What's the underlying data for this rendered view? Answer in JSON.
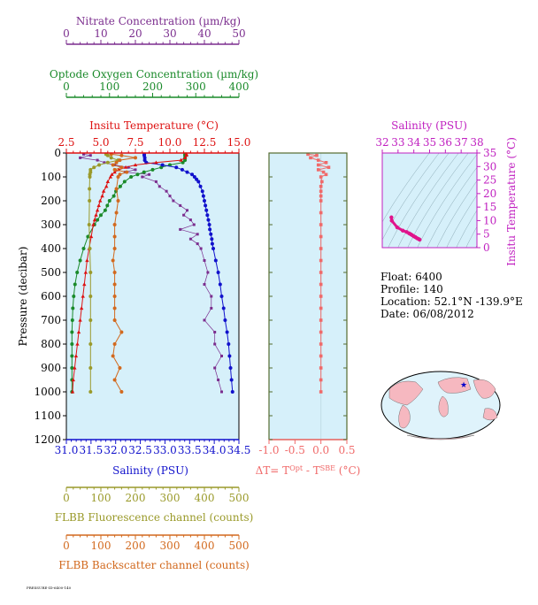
{
  "colors": {
    "nitrate": "#7b2d8e",
    "oxygen": "#1a8a2a",
    "temperature": "#dd1111",
    "salinity": "#1111cc",
    "fluorescence": "#9a9a2a",
    "backscatter": "#d2691e",
    "delta_t": "#f06a6a",
    "ts_curve": "#e0148c",
    "plot_bg": "#d6f0fa",
    "axis_dark": "#556b2f"
  },
  "info": {
    "float": "Float:  6400",
    "profile": "Profile:  140",
    "location": "Location:  52.1°N  -139.9°E",
    "date": "Date:  06/08/2012"
  },
  "footer_text": "PRESSURE-ID-6400-140",
  "chart_data": [
    {
      "type": "line",
      "id": "main_profile",
      "ylabel": "Pressure (decibar)",
      "ylim": [
        1200,
        0
      ],
      "yticks": [
        0,
        100,
        200,
        300,
        400,
        500,
        600,
        700,
        800,
        900,
        1000,
        1100,
        1200
      ],
      "axes": {
        "nitrate": {
          "label": "Nitrate Concentration (µm/kg)",
          "range": [
            0,
            50
          ],
          "ticks": [
            0,
            10,
            20,
            30,
            40,
            50
          ]
        },
        "oxygen": {
          "label": "Optode Oxygen Concentration (µm/kg)",
          "range": [
            0,
            400
          ],
          "ticks": [
            0,
            100,
            200,
            300,
            400
          ]
        },
        "temperature": {
          "label": "Insitu Temperature (°C)",
          "range": [
            2.5,
            15.0
          ],
          "ticks": [
            "2.5",
            "5.0",
            "7.5",
            "10.0",
            "12.5",
            "15.0"
          ]
        },
        "salinity": {
          "label": "Salinity (PSU)",
          "range": [
            31.0,
            34.5
          ],
          "ticks": [
            "31.0",
            "31.5",
            "32.0",
            "32.5",
            "33.0",
            "33.5",
            "34.0",
            "34.5"
          ]
        },
        "fluorescence": {
          "label": "FLBB Fluorescence channel (counts)",
          "range": [
            0,
            500
          ],
          "ticks": [
            0,
            100,
            200,
            300,
            400,
            500
          ]
        },
        "backscatter": {
          "label": "FLBB Backscatter channel (counts)",
          "range": [
            0,
            500
          ],
          "ticks": [
            0,
            100,
            200,
            300,
            400,
            500
          ]
        }
      },
      "series": [
        {
          "key": "salinity",
          "pressure": [
            5,
            10,
            20,
            30,
            40,
            50,
            60,
            70,
            80,
            90,
            100,
            110,
            120,
            140,
            160,
            180,
            200,
            220,
            240,
            260,
            280,
            300,
            320,
            340,
            360,
            380,
            400,
            450,
            500,
            550,
            600,
            650,
            700,
            750,
            800,
            850,
            900,
            950,
            1000
          ],
          "values": [
            32.58,
            32.58,
            32.59,
            32.59,
            32.62,
            32.95,
            33.23,
            33.35,
            33.45,
            33.55,
            33.6,
            33.64,
            33.68,
            33.72,
            33.76,
            33.78,
            33.8,
            33.82,
            33.84,
            33.86,
            33.88,
            33.9,
            33.91,
            33.93,
            33.95,
            33.96,
            33.98,
            34.03,
            34.08,
            34.12,
            34.15,
            34.19,
            34.22,
            34.26,
            34.29,
            34.31,
            34.33,
            34.35,
            34.37
          ]
        },
        {
          "key": "temperature",
          "pressure": [
            5,
            10,
            20,
            30,
            40,
            50,
            60,
            70,
            80,
            90,
            100,
            120,
            140,
            160,
            180,
            200,
            220,
            240,
            260,
            280,
            300,
            350,
            400,
            450,
            500,
            550,
            600,
            650,
            700,
            750,
            800,
            850,
            900,
            950,
            1000
          ],
          "values": [
            11.2,
            11.2,
            11.1,
            10.8,
            9.0,
            7.5,
            6.8,
            6.3,
            6.0,
            5.8,
            5.7,
            5.5,
            5.4,
            5.2,
            5.1,
            4.95,
            4.85,
            4.75,
            4.65,
            4.55,
            4.45,
            4.3,
            4.15,
            4.0,
            3.9,
            3.8,
            3.7,
            3.6,
            3.5,
            3.4,
            3.3,
            3.2,
            3.1,
            3.0,
            2.95
          ]
        },
        {
          "key": "oxygen",
          "pressure": [
            5,
            10,
            20,
            30,
            40,
            50,
            60,
            70,
            80,
            90,
            100,
            120,
            140,
            160,
            180,
            200,
            220,
            240,
            260,
            280,
            300,
            350,
            400,
            450,
            500,
            550,
            600,
            650,
            700,
            750,
            800,
            850,
            900,
            950,
            1000
          ],
          "values": [
            275,
            275,
            275,
            275,
            270,
            240,
            220,
            200,
            180,
            165,
            150,
            135,
            125,
            115,
            110,
            100,
            95,
            90,
            80,
            72,
            65,
            50,
            40,
            32,
            25,
            20,
            17,
            15,
            14,
            13,
            13,
            13,
            13,
            13,
            13
          ]
        },
        {
          "key": "nitrate",
          "pressure": [
            5,
            10,
            20,
            30,
            40,
            50,
            60,
            70,
            80,
            90,
            100,
            120,
            140,
            160,
            180,
            200,
            220,
            240,
            260,
            280,
            300,
            320,
            340,
            360,
            380,
            400,
            450,
            500,
            550,
            600,
            650,
            700,
            750,
            800,
            850,
            900,
            950,
            1000
          ],
          "values": [
            5,
            7,
            4,
            9,
            11,
            14,
            18,
            20,
            17,
            24,
            22,
            26,
            27,
            29,
            30,
            31,
            33,
            35,
            34,
            36,
            37,
            33,
            38,
            36,
            38,
            39,
            40,
            41,
            40,
            42,
            42,
            40,
            43,
            43,
            45,
            43,
            44,
            45
          ]
        },
        {
          "key": "fluorescence",
          "pressure": [
            5,
            10,
            20,
            30,
            40,
            50,
            60,
            70,
            80,
            90,
            100,
            150,
            200,
            300,
            400,
            500,
            600,
            700,
            800,
            900,
            1000
          ],
          "values": [
            115,
            120,
            130,
            150,
            120,
            95,
            80,
            70,
            70,
            68,
            68,
            67,
            67,
            66,
            68,
            70,
            70,
            70,
            70,
            70,
            70
          ]
        },
        {
          "key": "backscatter",
          "pressure": [
            5,
            10,
            20,
            30,
            40,
            50,
            60,
            70,
            80,
            90,
            100,
            150,
            200,
            250,
            300,
            350,
            400,
            450,
            500,
            550,
            600,
            650,
            700,
            750,
            800,
            850,
            900,
            950,
            1000
          ],
          "values": [
            130,
            160,
            200,
            155,
            145,
            135,
            160,
            140,
            175,
            155,
            150,
            145,
            150,
            145,
            140,
            140,
            140,
            135,
            140,
            140,
            140,
            140,
            140,
            160,
            140,
            135,
            155,
            140,
            160
          ]
        }
      ]
    },
    {
      "type": "line",
      "id": "delta_t",
      "xlabel": "ΔT= T^Opt - T^SBE (°C)",
      "xlim": [
        -1.0,
        0.5
      ],
      "xticks": [
        "-1.0",
        "-0.5",
        "0.0",
        "0.5"
      ],
      "ylim": [
        1200,
        0
      ],
      "series": [
        {
          "key": "delta_t",
          "pressure": [
            5,
            10,
            20,
            30,
            40,
            50,
            60,
            70,
            80,
            90,
            100,
            120,
            140,
            160,
            180,
            200,
            250,
            300,
            350,
            400,
            450,
            500,
            550,
            600,
            650,
            700,
            750,
            800,
            850,
            900,
            950,
            1000
          ],
          "values": [
            -0.25,
            -0.08,
            -0.2,
            -0.05,
            0.1,
            -0.05,
            0.15,
            -0.05,
            0.05,
            0.1,
            0.0,
            0.02,
            0.0,
            0.0,
            0.0,
            0.0,
            0.0,
            0.0,
            0.0,
            0.0,
            0.0,
            0.0,
            0.0,
            0.0,
            0.0,
            0.0,
            0.0,
            0.0,
            0.0,
            0.0,
            0.0,
            0.0
          ]
        }
      ]
    },
    {
      "type": "scatter",
      "id": "ts_diagram",
      "title": "Salinity (PSU)",
      "ylabel": "Insitu Temperature (°C)",
      "xlim": [
        32,
        38
      ],
      "ylim": [
        0,
        35
      ],
      "xticks": [
        32,
        33,
        34,
        35,
        36,
        37,
        38
      ],
      "yticks": [
        0,
        5,
        10,
        15,
        20,
        25,
        30,
        35
      ],
      "series": [
        {
          "key": "ts",
          "x": [
            32.58,
            32.6,
            32.95,
            33.3,
            33.55,
            33.7,
            33.8,
            33.9,
            34.0,
            34.1,
            34.2,
            34.3,
            34.37
          ],
          "y": [
            11.2,
            10.0,
            7.5,
            6.3,
            5.8,
            5.3,
            4.95,
            4.6,
            4.2,
            3.9,
            3.5,
            3.2,
            2.95
          ]
        }
      ]
    }
  ]
}
